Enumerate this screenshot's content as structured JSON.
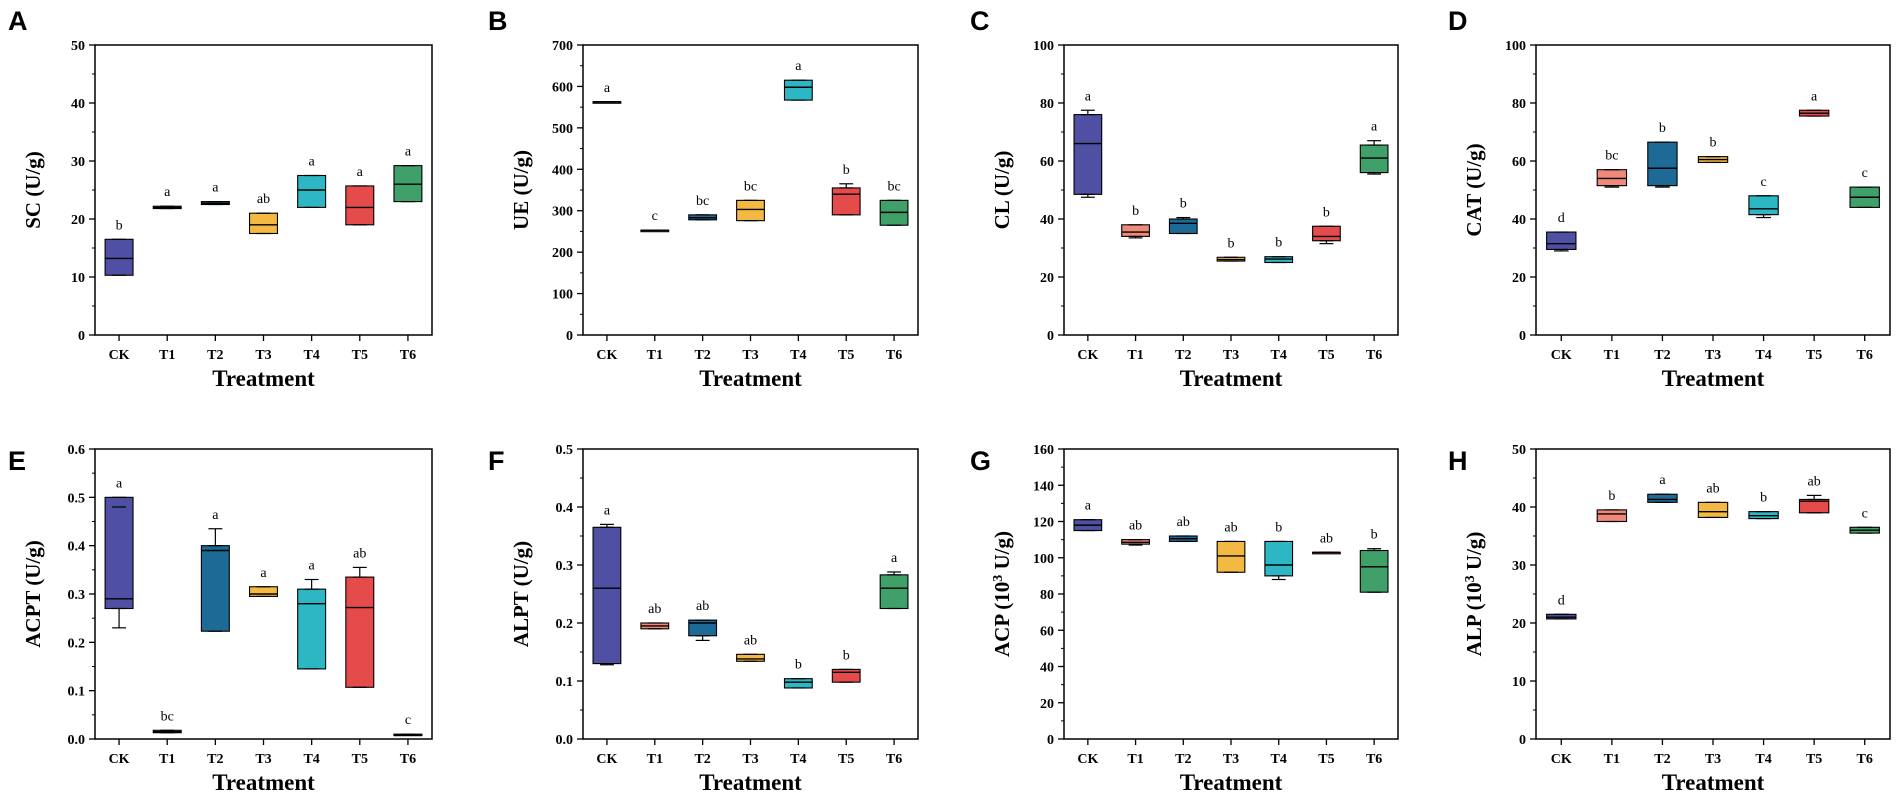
{
  "figure": {
    "label": "Eight box-plot panels of enzyme activities by treatment"
  },
  "chart_data": [
    {
      "type": "box",
      "panel": "A",
      "title": "",
      "xlabel": "Treatment",
      "ylabel": "SC (U/g)",
      "ylabel_main": "SC",
      "ylabel_unit": "(U/g)",
      "ylim": [
        0,
        50
      ],
      "yticks": [
        0,
        10,
        20,
        30,
        40,
        50
      ],
      "categories": [
        "CK",
        "T1",
        "T2",
        "T3",
        "T4",
        "T5",
        "T6"
      ],
      "boxes": [
        {
          "min": 10.3,
          "q1": 10.3,
          "median": 13.2,
          "q3": 16.5,
          "max": 16.5,
          "letter": "b",
          "color": "#4f4fa3"
        },
        {
          "min": 21.8,
          "q1": 21.8,
          "median": 22.0,
          "q3": 22.2,
          "max": 22.2,
          "letter": "a",
          "color": "#ef8a7a"
        },
        {
          "min": 22.5,
          "q1": 22.5,
          "median": 22.7,
          "q3": 23.0,
          "max": 23.0,
          "letter": "a",
          "color": "#1d6a96"
        },
        {
          "min": 17.5,
          "q1": 17.5,
          "median": 19.0,
          "q3": 21.0,
          "max": 21.0,
          "letter": "ab",
          "color": "#f4b942"
        },
        {
          "min": 22.0,
          "q1": 22.0,
          "median": 25.0,
          "q3": 27.5,
          "max": 27.5,
          "letter": "a",
          "color": "#2db7c4"
        },
        {
          "min": 19.0,
          "q1": 19.0,
          "median": 22.0,
          "q3": 25.7,
          "max": 25.7,
          "letter": "a",
          "color": "#e64b4b"
        },
        {
          "min": 23.0,
          "q1": 23.0,
          "median": 26.0,
          "q3": 29.2,
          "max": 29.2,
          "letter": "a",
          "color": "#3fa06a"
        }
      ]
    },
    {
      "type": "box",
      "panel": "B",
      "title": "",
      "xlabel": "Treatment",
      "ylabel": "UE (U/g)",
      "ylabel_main": "UE",
      "ylabel_unit": "(U/g)",
      "ylim": [
        0,
        700
      ],
      "yticks": [
        0,
        100,
        200,
        300,
        400,
        500,
        600,
        700
      ],
      "categories": [
        "CK",
        "T1",
        "T2",
        "T3",
        "T4",
        "T5",
        "T6"
      ],
      "boxes": [
        {
          "min": 563,
          "q1": 563,
          "median": 563,
          "q3": 563,
          "max": 563,
          "letter": "a",
          "color": "#4f4fa3"
        },
        {
          "min": 253,
          "q1": 253,
          "median": 253,
          "q3": 253,
          "max": 253,
          "letter": "c",
          "color": "#ef8a7a"
        },
        {
          "min": 278,
          "q1": 278,
          "median": 283,
          "q3": 290,
          "max": 290,
          "letter": "bc",
          "color": "#1d6a96"
        },
        {
          "min": 276,
          "q1": 276,
          "median": 303,
          "q3": 325,
          "max": 325,
          "letter": "bc",
          "color": "#f4b942"
        },
        {
          "min": 567,
          "q1": 567,
          "median": 598,
          "q3": 615,
          "max": 615,
          "letter": "a",
          "color": "#2db7c4"
        },
        {
          "min": 290,
          "q1": 290,
          "median": 340,
          "q3": 355,
          "max": 365,
          "letter": "b",
          "color": "#e64b4b"
        },
        {
          "min": 265,
          "q1": 265,
          "median": 296,
          "q3": 325,
          "max": 325,
          "letter": "bc",
          "color": "#3fa06a"
        }
      ]
    },
    {
      "type": "box",
      "panel": "C",
      "title": "",
      "xlabel": "Treatment",
      "ylabel": "CL (U/g)",
      "ylabel_main": "CL",
      "ylabel_unit": "(U/g)",
      "ylim": [
        0,
        100
      ],
      "yticks": [
        0,
        20,
        40,
        60,
        80,
        100
      ],
      "categories": [
        "CK",
        "T1",
        "T2",
        "T3",
        "T4",
        "T5",
        "T6"
      ],
      "boxes": [
        {
          "min": 47.5,
          "q1": 48.5,
          "median": 66.0,
          "q3": 76.0,
          "max": 77.5,
          "letter": "a",
          "color": "#4f4fa3"
        },
        {
          "min": 33.5,
          "q1": 34.0,
          "median": 35.5,
          "q3": 38.0,
          "max": 38.0,
          "letter": "b",
          "color": "#ef8a7a"
        },
        {
          "min": 35.0,
          "q1": 35.0,
          "median": 38.5,
          "q3": 40.0,
          "max": 40.5,
          "letter": "b",
          "color": "#1d6a96"
        },
        {
          "min": 25.5,
          "q1": 25.5,
          "median": 26.0,
          "q3": 26.8,
          "max": 26.8,
          "letter": "b",
          "color": "#f4b942"
        },
        {
          "min": 25.0,
          "q1": 25.0,
          "median": 26.2,
          "q3": 27.0,
          "max": 27.0,
          "letter": "b",
          "color": "#2db7c4"
        },
        {
          "min": 31.5,
          "q1": 32.5,
          "median": 34.0,
          "q3": 37.5,
          "max": 37.5,
          "letter": "b",
          "color": "#e64b4b"
        },
        {
          "min": 55.5,
          "q1": 56.0,
          "median": 61.0,
          "q3": 65.5,
          "max": 67.0,
          "letter": "a",
          "color": "#3fa06a"
        }
      ]
    },
    {
      "type": "box",
      "panel": "D",
      "title": "",
      "xlabel": "Treatment",
      "ylabel": "CAT (U/g)",
      "ylabel_main": "CAT",
      "ylabel_unit": "(U/g)",
      "ylim": [
        0,
        100
      ],
      "yticks": [
        0,
        20,
        40,
        60,
        80,
        100
      ],
      "categories": [
        "CK",
        "T1",
        "T2",
        "T3",
        "T4",
        "T5",
        "T6"
      ],
      "boxes": [
        {
          "min": 29.0,
          "q1": 29.5,
          "median": 31.5,
          "q3": 35.5,
          "max": 35.5,
          "letter": "d",
          "color": "#4f4fa3"
        },
        {
          "min": 51.0,
          "q1": 51.5,
          "median": 54.0,
          "q3": 57.0,
          "max": 57.0,
          "letter": "bc",
          "color": "#ef8a7a"
        },
        {
          "min": 51.0,
          "q1": 51.5,
          "median": 57.5,
          "q3": 66.5,
          "max": 66.5,
          "letter": "b",
          "color": "#1d6a96"
        },
        {
          "min": 59.5,
          "q1": 59.5,
          "median": 60.5,
          "q3": 61.5,
          "max": 61.5,
          "letter": "b",
          "color": "#f4b942"
        },
        {
          "min": 40.5,
          "q1": 41.5,
          "median": 43.5,
          "q3": 48.0,
          "max": 48.0,
          "letter": "c",
          "color": "#2db7c4"
        },
        {
          "min": 75.5,
          "q1": 75.5,
          "median": 76.5,
          "q3": 77.5,
          "max": 77.5,
          "letter": "a",
          "color": "#e64b4b"
        },
        {
          "min": 44.0,
          "q1": 44.0,
          "median": 47.5,
          "q3": 51.0,
          "max": 51.0,
          "letter": "c",
          "color": "#3fa06a"
        }
      ]
    },
    {
      "type": "box",
      "panel": "E",
      "title": "",
      "xlabel": "Treatment",
      "ylabel": "ACPT (U/g)",
      "ylabel_main": "ACPT",
      "ylabel_unit": "(U/g)",
      "ylim": [
        0,
        0.6
      ],
      "yticks": [
        0.0,
        0.1,
        0.2,
        0.3,
        0.4,
        0.5,
        0.6
      ],
      "tickDecimals": 1,
      "categories": [
        "CK",
        "T1",
        "T2",
        "T3",
        "T4",
        "T5",
        "T6"
      ],
      "boxes": [
        {
          "min": 0.23,
          "q1": 0.27,
          "median": 0.29,
          "q3": 0.5,
          "max": 0.5,
          "extra": 0.48,
          "letter": "a",
          "color": "#4f4fa3"
        },
        {
          "min": 0.013,
          "q1": 0.013,
          "median": 0.015,
          "q3": 0.018,
          "max": 0.018,
          "letter": "bc",
          "color": "#ef8a7a"
        },
        {
          "min": 0.223,
          "q1": 0.223,
          "median": 0.39,
          "q3": 0.4,
          "max": 0.435,
          "letter": "a",
          "color": "#1d6a96"
        },
        {
          "min": 0.295,
          "q1": 0.295,
          "median": 0.3,
          "q3": 0.315,
          "max": 0.315,
          "letter": "a",
          "color": "#f4b942"
        },
        {
          "min": 0.145,
          "q1": 0.145,
          "median": 0.28,
          "q3": 0.31,
          "max": 0.33,
          "letter": "a",
          "color": "#2db7c4"
        },
        {
          "min": 0.107,
          "q1": 0.107,
          "median": 0.272,
          "q3": 0.335,
          "max": 0.355,
          "letter": "ab",
          "color": "#e64b4b"
        },
        {
          "min": 0.008,
          "q1": 0.008,
          "median": 0.009,
          "q3": 0.01,
          "max": 0.01,
          "letter": "c",
          "color": "#3fa06a"
        }
      ]
    },
    {
      "type": "box",
      "panel": "F",
      "title": "",
      "xlabel": "Treatment",
      "ylabel": "ALPT (U/g)",
      "ylabel_main": "ALPT",
      "ylabel_unit": "(U/g)",
      "ylim": [
        0,
        0.5
      ],
      "yticks": [
        0.0,
        0.1,
        0.2,
        0.3,
        0.4,
        0.5
      ],
      "tickDecimals": 1,
      "categories": [
        "CK",
        "T1",
        "T2",
        "T3",
        "T4",
        "T5",
        "T6"
      ],
      "boxes": [
        {
          "min": 0.128,
          "q1": 0.13,
          "median": 0.26,
          "q3": 0.365,
          "max": 0.37,
          "letter": "a",
          "color": "#4f4fa3"
        },
        {
          "min": 0.19,
          "q1": 0.19,
          "median": 0.195,
          "q3": 0.2,
          "max": 0.2,
          "letter": "ab",
          "color": "#ef8a7a"
        },
        {
          "min": 0.17,
          "q1": 0.178,
          "median": 0.2,
          "q3": 0.205,
          "max": 0.205,
          "letter": "ab",
          "color": "#1d6a96"
        },
        {
          "min": 0.134,
          "q1": 0.134,
          "median": 0.138,
          "q3": 0.146,
          "max": 0.146,
          "letter": "ab",
          "color": "#f4b942"
        },
        {
          "min": 0.088,
          "q1": 0.088,
          "median": 0.098,
          "q3": 0.104,
          "max": 0.104,
          "letter": "b",
          "color": "#2db7c4"
        },
        {
          "min": 0.098,
          "q1": 0.098,
          "median": 0.115,
          "q3": 0.12,
          "max": 0.12,
          "letter": "b",
          "color": "#e64b4b"
        },
        {
          "min": 0.225,
          "q1": 0.225,
          "median": 0.26,
          "q3": 0.283,
          "max": 0.288,
          "letter": "a",
          "color": "#3fa06a"
        }
      ]
    },
    {
      "type": "box",
      "panel": "G",
      "title": "",
      "xlabel": "Treatment",
      "ylabel": "ACP (10³ U/g)",
      "ylabel_main": "ACP (10",
      "ylabel_sup": "3",
      "ylabel_unit": " U/g)",
      "ylim": [
        0,
        160
      ],
      "yticks": [
        0,
        20,
        40,
        60,
        80,
        100,
        120,
        140,
        160
      ],
      "categories": [
        "CK",
        "T1",
        "T2",
        "T3",
        "T4",
        "T5",
        "T6"
      ],
      "boxes": [
        {
          "min": 115,
          "q1": 115,
          "median": 118,
          "q3": 121,
          "max": 121,
          "letter": "a",
          "color": "#4f4fa3"
        },
        {
          "min": 107,
          "q1": 107.5,
          "median": 108.5,
          "q3": 110,
          "max": 110,
          "letter": "ab",
          "color": "#ef8a7a"
        },
        {
          "min": 109,
          "q1": 109,
          "median": 110.5,
          "q3": 112,
          "max": 112,
          "letter": "ab",
          "color": "#1d6a96"
        },
        {
          "min": 92,
          "q1": 92,
          "median": 101,
          "q3": 109,
          "max": 109,
          "letter": "ab",
          "color": "#f4b942"
        },
        {
          "min": 88,
          "q1": 90,
          "median": 96,
          "q3": 109,
          "max": 109,
          "letter": "b",
          "color": "#2db7c4"
        },
        {
          "min": 103,
          "q1": 103,
          "median": 103,
          "q3": 103,
          "max": 103,
          "letter": "ab",
          "color": "#e64b4b"
        },
        {
          "min": 81,
          "q1": 81,
          "median": 95,
          "q3": 104,
          "max": 105,
          "letter": "b",
          "color": "#3fa06a"
        }
      ]
    },
    {
      "type": "box",
      "panel": "H",
      "title": "",
      "xlabel": "Treatment",
      "ylabel": "ALP (10³ U/g)",
      "ylabel_main": "ALP (10",
      "ylabel_sup": "3",
      "ylabel_unit": " U/g)",
      "ylim": [
        0,
        50
      ],
      "yticks": [
        0,
        10,
        20,
        30,
        40,
        50
      ],
      "categories": [
        "CK",
        "T1",
        "T2",
        "T3",
        "T4",
        "T5",
        "T6"
      ],
      "boxes": [
        {
          "min": 20.7,
          "q1": 20.7,
          "median": 21.0,
          "q3": 21.5,
          "max": 21.5,
          "letter": "d",
          "color": "#4f4fa3"
        },
        {
          "min": 37.5,
          "q1": 37.5,
          "median": 38.8,
          "q3": 39.5,
          "max": 39.5,
          "letter": "b",
          "color": "#ef8a7a"
        },
        {
          "min": 40.8,
          "q1": 40.8,
          "median": 41.3,
          "q3": 42.2,
          "max": 42.2,
          "letter": "a",
          "color": "#1d6a96"
        },
        {
          "min": 38.2,
          "q1": 38.2,
          "median": 39.2,
          "q3": 40.8,
          "max": 40.8,
          "letter": "ab",
          "color": "#f4b942"
        },
        {
          "min": 38.0,
          "q1": 38.0,
          "median": 38.5,
          "q3": 39.2,
          "max": 39.2,
          "letter": "b",
          "color": "#2db7c4"
        },
        {
          "min": 39.0,
          "q1": 39.0,
          "median": 41.0,
          "q3": 41.3,
          "max": 42.0,
          "letter": "ab",
          "color": "#e64b4b"
        },
        {
          "min": 35.5,
          "q1": 35.5,
          "median": 36.0,
          "q3": 36.5,
          "max": 36.5,
          "letter": "c",
          "color": "#3fa06a"
        }
      ]
    }
  ]
}
